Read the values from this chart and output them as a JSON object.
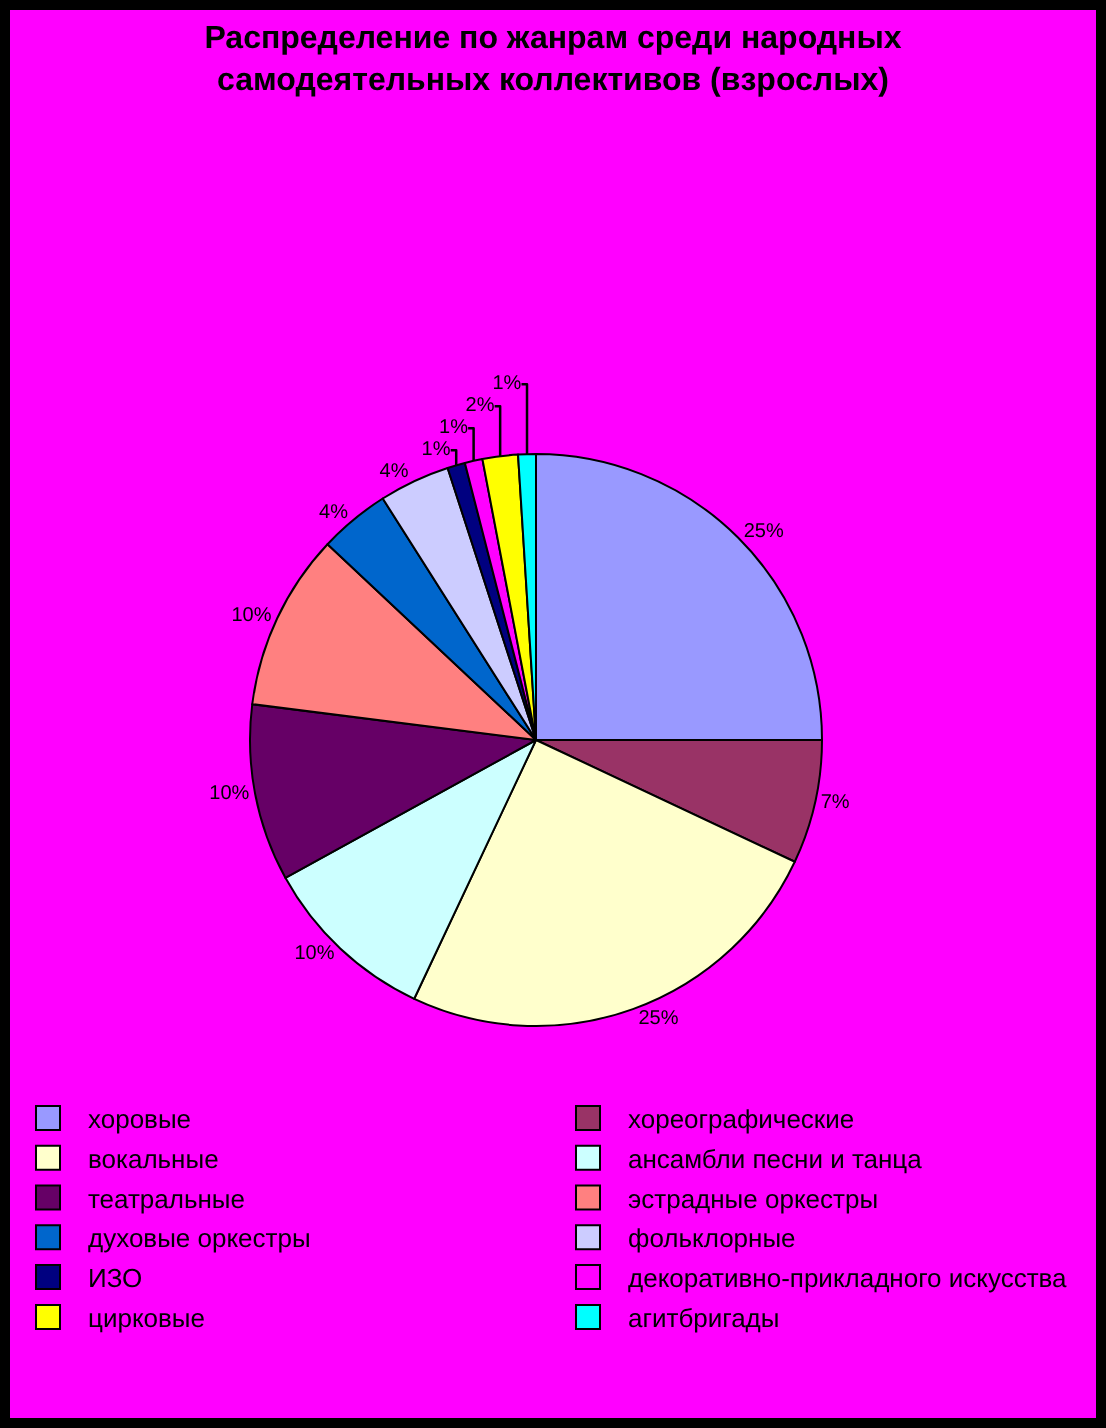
{
  "chart_data": {
    "type": "pie",
    "title": "Распределение по жанрам среди народных самодеятельных коллективов (взрослых)",
    "categories": [
      "хоровые",
      "хореографические",
      "вокальные",
      "ансамбли песни и танца",
      "театральные",
      "эстрадные оркестры",
      "духовые оркестры",
      "фольклорные",
      "ИЗО",
      "декоративно-прикладного искусства",
      "цирковые",
      "агитбригады"
    ],
    "values": [
      25,
      7,
      25,
      10,
      10,
      10,
      4,
      4,
      1,
      1,
      2,
      1
    ],
    "value_labels": [
      "25%",
      "7%",
      "25%",
      "10%",
      "10%",
      "10%",
      "4%",
      "4%",
      "1%",
      "1%",
      "2%",
      "1%"
    ],
    "colors": [
      "#9999ff",
      "#993366",
      "#ffffcc",
      "#ccffff",
      "#660066",
      "#ff8080",
      "#0066cc",
      "#ccccff",
      "#000080",
      "#ff00ff",
      "#ffff00",
      "#00ffff"
    ],
    "legend": "bottom"
  }
}
